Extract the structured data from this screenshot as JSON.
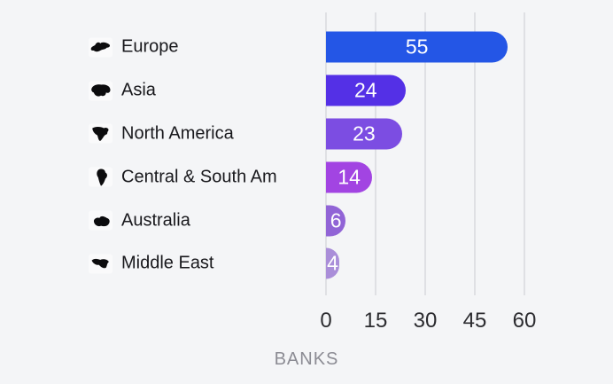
{
  "chart_data": {
    "type": "bar",
    "orientation": "horizontal",
    "categories": [
      "Europe",
      "Asia",
      "North America",
      "Central & South Am",
      "Australia",
      "Middle East"
    ],
    "values": [
      55,
      24,
      23,
      14,
      6,
      4
    ],
    "series": [
      {
        "name": "Banks",
        "values": [
          55,
          24,
          23,
          14,
          6,
          4
        ]
      }
    ],
    "bar_colors": [
      "#2456e6",
      "#5430e6",
      "#7c4de2",
      "#a244e2",
      "#9164d6",
      "#aa8ed9"
    ],
    "icons": [
      "europe-icon",
      "asia-icon",
      "north-america-icon",
      "central-south-america-icon",
      "australia-icon",
      "middle-east-icon"
    ],
    "title": "",
    "xlabel": "BANKS",
    "ylabel": "",
    "x_ticks": [
      "0",
      "15",
      "30",
      "45",
      "60"
    ],
    "x_tick_values": [
      0,
      15,
      30,
      45,
      60
    ],
    "xlim": [
      0,
      60
    ],
    "grid": "vertical",
    "legend": "none",
    "colors": {
      "background": "#f4f5f7",
      "gridline": "#dfe0e4",
      "value_label": "#ffffff",
      "category_label": "#18181c",
      "tick_label": "#2c2c30",
      "axis_title": "#8c8c94",
      "icon": "#0c0c0e"
    }
  }
}
